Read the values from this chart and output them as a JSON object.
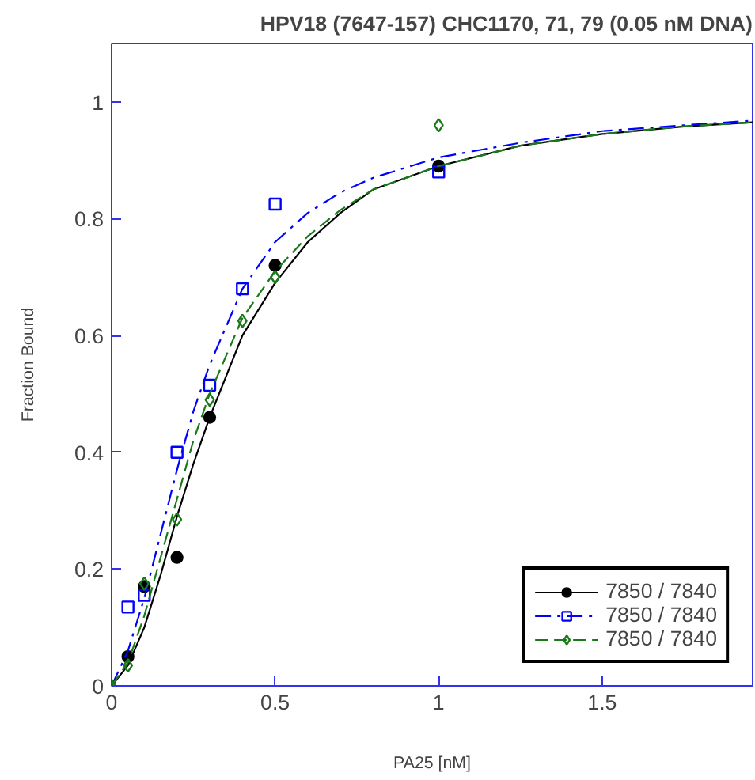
{
  "chart_data": {
    "type": "scatter",
    "title": "HPV18 (7647-157) CHC1170, 71, 79 (0.05 nM DNA)",
    "xlabel": "PA25 [nM]",
    "ylabel": "Fraction Bound",
    "xlim": [
      0,
      1.96
    ],
    "ylim": [
      0,
      1.1
    ],
    "xticks": [
      0,
      0.5,
      1,
      1.5
    ],
    "yticks": [
      0,
      0.2,
      0.4,
      0.6,
      0.8,
      1
    ],
    "grid": false,
    "legend": "bottom right",
    "series": [
      {
        "name": "7850 / 7840",
        "type": "scatter",
        "marker": "circle",
        "color": "#000000",
        "x": [
          0.05,
          0.1,
          0.2,
          0.3,
          0.5,
          1
        ],
        "values": [
          0.05,
          0.17,
          0.22,
          0.46,
          0.72,
          0.89
        ]
      },
      {
        "type": "line",
        "line_style": "solid",
        "color": "#000000",
        "x": [
          0,
          0.05,
          0.1,
          0.15,
          0.2,
          0.25,
          0.3,
          0.4,
          0.5,
          0.6,
          0.7,
          0.8,
          1.0,
          1.25,
          1.5,
          1.75,
          1.96
        ],
        "values": [
          0,
          0.035,
          0.1,
          0.19,
          0.29,
          0.38,
          0.46,
          0.6,
          0.69,
          0.76,
          0.81,
          0.85,
          0.89,
          0.925,
          0.945,
          0.958,
          0.965
        ]
      },
      {
        "name": "7850 / 7840",
        "type": "scatter",
        "marker": "square",
        "color": "#0000ff",
        "x": [
          0.05,
          0.1,
          0.2,
          0.3,
          0.4,
          0.5,
          1
        ],
        "values": [
          0.135,
          0.155,
          0.4,
          0.515,
          0.68,
          0.825,
          0.88
        ]
      },
      {
        "type": "line",
        "line_style": "dashdot",
        "color": "#0000ff",
        "x": [
          0,
          0.05,
          0.1,
          0.15,
          0.2,
          0.25,
          0.3,
          0.4,
          0.5,
          0.6,
          0.7,
          0.8,
          1.0,
          1.25,
          1.5,
          1.75,
          1.96
        ],
        "values": [
          0,
          0.06,
          0.15,
          0.26,
          0.37,
          0.47,
          0.55,
          0.68,
          0.76,
          0.81,
          0.845,
          0.87,
          0.905,
          0.93,
          0.95,
          0.96,
          0.968
        ]
      },
      {
        "name": "7850 / 7840",
        "type": "scatter",
        "marker": "diamond",
        "color": "#1a7a1a",
        "x": [
          0,
          0.05,
          0.1,
          0.2,
          0.3,
          0.4,
          0.5,
          1
        ],
        "values": [
          0,
          0.035,
          0.175,
          0.285,
          0.49,
          0.625,
          0.7,
          0.96
        ]
      },
      {
        "type": "line",
        "line_style": "dashed",
        "color": "#1a7a1a",
        "x": [
          0,
          0.05,
          0.1,
          0.15,
          0.2,
          0.25,
          0.3,
          0.4,
          0.5,
          0.6,
          0.7,
          0.8,
          1.0,
          1.25,
          1.5,
          1.75,
          1.96
        ],
        "values": [
          0,
          0.04,
          0.12,
          0.22,
          0.32,
          0.42,
          0.5,
          0.63,
          0.71,
          0.77,
          0.815,
          0.85,
          0.89,
          0.925,
          0.945,
          0.958,
          0.965
        ]
      }
    ]
  }
}
